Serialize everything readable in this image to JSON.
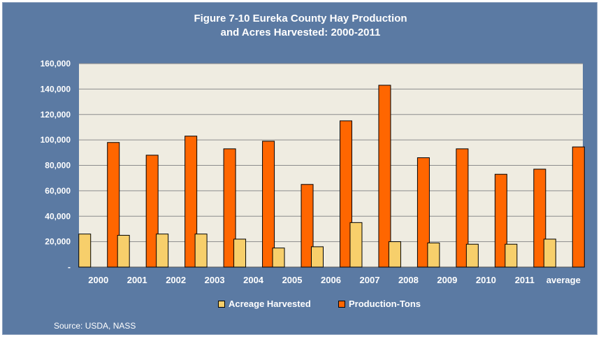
{
  "title_line1": "Figure 7-10 Eureka County Hay Production",
  "title_line2": "and Acres Harvested: 2000-2011",
  "source": "Source: USDA, NASS",
  "colors": {
    "frame": "#5b7aa3",
    "plot_bg": "#efece1",
    "acreage": "#f7cf6b",
    "production": "#ff6600",
    "text": "#ffffff"
  },
  "chart_data": {
    "type": "bar",
    "categories": [
      "2000",
      "2001",
      "2002",
      "2003",
      "2004",
      "2005",
      "2006",
      "2007",
      "2008",
      "2009",
      "2010",
      "2011",
      "average"
    ],
    "series": [
      {
        "name": "Acreage Harvested",
        "values": [
          26000,
          25000,
          26000,
          26000,
          22000,
          15000,
          16000,
          35000,
          20000,
          19000,
          18000,
          18000,
          22000
        ]
      },
      {
        "name": "Production-Tons",
        "values": [
          98000,
          88000,
          103000,
          93000,
          99000,
          65000,
          115000,
          143000,
          86000,
          93000,
          73000,
          77000,
          94500
        ]
      }
    ],
    "ylim": [
      0,
      160000
    ],
    "yticks": [
      0,
      20000,
      40000,
      60000,
      80000,
      100000,
      120000,
      140000,
      160000
    ],
    "ytick_labels": [
      "-",
      "20,000",
      "40,000",
      "60,000",
      "80,000",
      "100,000",
      "120,000",
      "140,000",
      "160,000"
    ],
    "grid": true,
    "legend_position": "bottom"
  }
}
